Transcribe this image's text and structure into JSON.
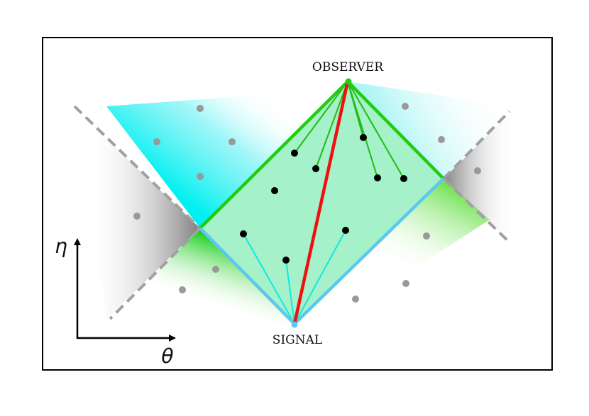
{
  "labels": {
    "observer": "OBSERVER",
    "signal": "SIGNAL",
    "time_axis": "η",
    "space_axis": "θ"
  },
  "colors": {
    "frame": "#000000",
    "diamond_fill": "#9ff0c7",
    "future_edge_green": "#22cc11",
    "past_edge_cyan": "#5cc8ee",
    "geodesic_red": "#ee1111",
    "green_link": "#22bb11",
    "cyan_link": "#11e8e0",
    "event_dot": "#000000",
    "background_dot": "#999999",
    "cone_dash": "#a0a0a0"
  }
}
